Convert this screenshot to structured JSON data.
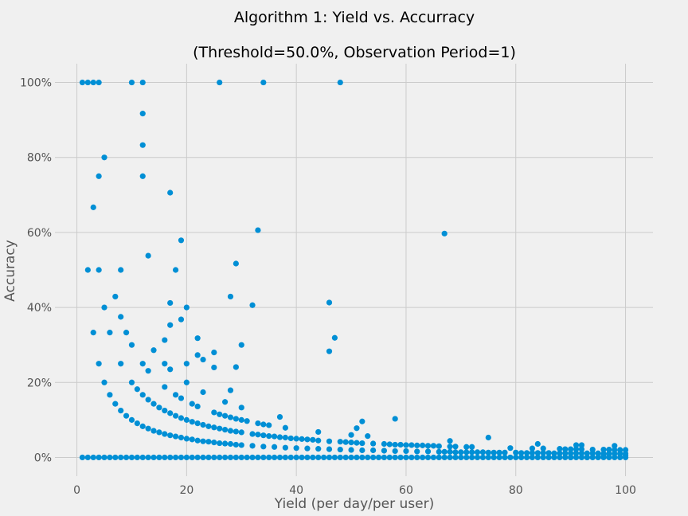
{
  "chart_data": {
    "type": "scatter",
    "title": "Algorithm 1: Yield vs. Accurracy",
    "subtitle": "(Threshold=50.0%, Observation Period=1)",
    "xlabel": "Yield (per day/per user)",
    "ylabel": "Accuracy",
    "xlim": [
      -4,
      105
    ],
    "ylim": [
      -0.05,
      1.05
    ],
    "x_ticks": [
      0,
      20,
      40,
      60,
      80,
      100
    ],
    "x_tick_labels": [
      "0",
      "20",
      "40",
      "60",
      "80",
      "100"
    ],
    "y_ticks": [
      0,
      0.2,
      0.4,
      0.6,
      0.8,
      1.0
    ],
    "y_tick_labels": [
      "0%",
      "20%",
      "40%",
      "60%",
      "80%",
      "100%"
    ],
    "grid": true,
    "point_color": "#008fd5",
    "background": "#f0f0f0",
    "zero_line_x_range": [
      1,
      100
    ],
    "points": [
      [
        1,
        1.0
      ],
      [
        2,
        1.0
      ],
      [
        3,
        1.0
      ],
      [
        4,
        1.0
      ],
      [
        10,
        1.0
      ],
      [
        12,
        1.0
      ],
      [
        26,
        1.0
      ],
      [
        34,
        1.0
      ],
      [
        48,
        1.0
      ],
      [
        12,
        0.917
      ],
      [
        12,
        0.833
      ],
      [
        5,
        0.8
      ],
      [
        4,
        0.75
      ],
      [
        12,
        0.75
      ],
      [
        17,
        0.706
      ],
      [
        3,
        0.667
      ],
      [
        33,
        0.606
      ],
      [
        67,
        0.597
      ],
      [
        19,
        0.579
      ],
      [
        13,
        0.538
      ],
      [
        29,
        0.517
      ],
      [
        2,
        0.5
      ],
      [
        4,
        0.5
      ],
      [
        8,
        0.5
      ],
      [
        18,
        0.5
      ],
      [
        7,
        0.429
      ],
      [
        28,
        0.429
      ],
      [
        17,
        0.412
      ],
      [
        46,
        0.413
      ],
      [
        32,
        0.406
      ],
      [
        5,
        0.4
      ],
      [
        20,
        0.4
      ],
      [
        8,
        0.375
      ],
      [
        19,
        0.368
      ],
      [
        17,
        0.353
      ],
      [
        3,
        0.333
      ],
      [
        6,
        0.333
      ],
      [
        9,
        0.333
      ],
      [
        47,
        0.319
      ],
      [
        22,
        0.318
      ],
      [
        16,
        0.313
      ],
      [
        10,
        0.3
      ],
      [
        30,
        0.3
      ],
      [
        14,
        0.286
      ],
      [
        46,
        0.283
      ],
      [
        25,
        0.28
      ],
      [
        22,
        0.273
      ],
      [
        23,
        0.261
      ],
      [
        4,
        0.25
      ],
      [
        8,
        0.25
      ],
      [
        12,
        0.25
      ],
      [
        16,
        0.25
      ],
      [
        20,
        0.25
      ],
      [
        25,
        0.24
      ],
      [
        29,
        0.241
      ],
      [
        13,
        0.231
      ],
      [
        17,
        0.235
      ],
      [
        5,
        0.2
      ],
      [
        10,
        0.2
      ],
      [
        20,
        0.2
      ],
      [
        11,
        0.182
      ],
      [
        16,
        0.188
      ],
      [
        28,
        0.179
      ],
      [
        23,
        0.174
      ],
      [
        6,
        0.167
      ],
      [
        12,
        0.167
      ],
      [
        18,
        0.167
      ],
      [
        13,
        0.154
      ],
      [
        19,
        0.158
      ],
      [
        27,
        0.148
      ],
      [
        7,
        0.143
      ],
      [
        14,
        0.143
      ],
      [
        21,
        0.143
      ],
      [
        22,
        0.136
      ],
      [
        15,
        0.133
      ],
      [
        30,
        0.133
      ],
      [
        8,
        0.125
      ],
      [
        16,
        0.125
      ],
      [
        17,
        0.118
      ],
      [
        25,
        0.12
      ],
      [
        26,
        0.115
      ],
      [
        9,
        0.111
      ],
      [
        18,
        0.111
      ],
      [
        27,
        0.111
      ],
      [
        37,
        0.108
      ],
      [
        58,
        0.103
      ],
      [
        28,
        0.107
      ],
      [
        29,
        0.103
      ],
      [
        19,
        0.105
      ],
      [
        30,
        0.1
      ],
      [
        10,
        0.1
      ],
      [
        20,
        0.1
      ],
      [
        31,
        0.097
      ],
      [
        52,
        0.096
      ],
      [
        33,
        0.091
      ],
      [
        34,
        0.088
      ],
      [
        21,
        0.095
      ],
      [
        35,
        0.086
      ],
      [
        11,
        0.091
      ],
      [
        22,
        0.091
      ],
      [
        23,
        0.087
      ],
      [
        24,
        0.083
      ],
      [
        12,
        0.083
      ],
      [
        25,
        0.08
      ],
      [
        51,
        0.078
      ],
      [
        38,
        0.079
      ],
      [
        26,
        0.077
      ],
      [
        13,
        0.077
      ],
      [
        27,
        0.074
      ],
      [
        28,
        0.071
      ],
      [
        14,
        0.071
      ],
      [
        29,
        0.069
      ],
      [
        30,
        0.067
      ],
      [
        44,
        0.068
      ],
      [
        15,
        0.067
      ],
      [
        32,
        0.0625
      ],
      [
        16,
        0.0625
      ],
      [
        33,
        0.061
      ],
      [
        34,
        0.059
      ],
      [
        17,
        0.059
      ],
      [
        35,
        0.057
      ],
      [
        50,
        0.06
      ],
      [
        53,
        0.057
      ],
      [
        36,
        0.056
      ],
      [
        18,
        0.056
      ],
      [
        37,
        0.054
      ],
      [
        75,
        0.053
      ],
      [
        19,
        0.053
      ],
      [
        38,
        0.053
      ],
      [
        39,
        0.051
      ],
      [
        20,
        0.05
      ],
      [
        40,
        0.05
      ],
      [
        41,
        0.049
      ],
      [
        21,
        0.048
      ],
      [
        42,
        0.048
      ],
      [
        22,
        0.045
      ],
      [
        43,
        0.047
      ],
      [
        44,
        0.045
      ],
      [
        23,
        0.043
      ],
      [
        46,
        0.043
      ],
      [
        68,
        0.044
      ],
      [
        48,
        0.042
      ],
      [
        24,
        0.042
      ],
      [
        49,
        0.041
      ],
      [
        50,
        0.04
      ],
      [
        25,
        0.04
      ],
      [
        51,
        0.039
      ],
      [
        52,
        0.038
      ],
      [
        26,
        0.038
      ],
      [
        54,
        0.037
      ],
      [
        56,
        0.036
      ],
      [
        57,
        0.035
      ],
      [
        27,
        0.037
      ],
      [
        58,
        0.034
      ],
      [
        59,
        0.034
      ],
      [
        28,
        0.036
      ],
      [
        60,
        0.033
      ],
      [
        61,
        0.033
      ],
      [
        62,
        0.032
      ],
      [
        29,
        0.034
      ],
      [
        63,
        0.032
      ],
      [
        64,
        0.031
      ],
      [
        65,
        0.031
      ],
      [
        30,
        0.033
      ],
      [
        66,
        0.03
      ],
      [
        68,
        0.029
      ],
      [
        69,
        0.029
      ],
      [
        71,
        0.028
      ],
      [
        72,
        0.028
      ],
      [
        84,
        0.036
      ],
      [
        83,
        0.024
      ],
      [
        79,
        0.025
      ],
      [
        85,
        0.024
      ],
      [
        88,
        0.023
      ],
      [
        89,
        0.022
      ],
      [
        90,
        0.022
      ],
      [
        91,
        0.022
      ],
      [
        92,
        0.022
      ],
      [
        91,
        0.033
      ],
      [
        92,
        0.033
      ],
      [
        98,
        0.031
      ],
      [
        94,
        0.021
      ],
      [
        96,
        0.021
      ],
      [
        97,
        0.021
      ],
      [
        98,
        0.02
      ],
      [
        99,
        0.02
      ],
      [
        100,
        0.02
      ],
      [
        32,
        0.031
      ],
      [
        34,
        0.029
      ],
      [
        36,
        0.028
      ],
      [
        38,
        0.026
      ],
      [
        40,
        0.025
      ],
      [
        42,
        0.024
      ],
      [
        44,
        0.023
      ],
      [
        46,
        0.022
      ],
      [
        48,
        0.021
      ],
      [
        50,
        0.02
      ],
      [
        52,
        0.019
      ],
      [
        54,
        0.019
      ],
      [
        56,
        0.018
      ],
      [
        58,
        0.017
      ],
      [
        60,
        0.017
      ],
      [
        62,
        0.016
      ],
      [
        64,
        0.016
      ],
      [
        66,
        0.015
      ],
      [
        68,
        0.015
      ],
      [
        70,
        0.014
      ],
      [
        72,
        0.014
      ],
      [
        74,
        0.014
      ],
      [
        76,
        0.013
      ],
      [
        78,
        0.013
      ],
      [
        80,
        0.013
      ],
      [
        82,
        0.012
      ],
      [
        84,
        0.012
      ],
      [
        86,
        0.012
      ],
      [
        88,
        0.011
      ],
      [
        90,
        0.011
      ],
      [
        92,
        0.011
      ],
      [
        94,
        0.011
      ],
      [
        96,
        0.01
      ],
      [
        98,
        0.01
      ],
      [
        100,
        0.01
      ],
      [
        67,
        0.015
      ],
      [
        69,
        0.014
      ],
      [
        71,
        0.014
      ],
      [
        73,
        0.014
      ],
      [
        75,
        0.013
      ],
      [
        77,
        0.013
      ],
      [
        81,
        0.012
      ],
      [
        83,
        0.012
      ],
      [
        85,
        0.012
      ],
      [
        87,
        0.011
      ],
      [
        89,
        0.011
      ],
      [
        91,
        0.011
      ],
      [
        93,
        0.011
      ],
      [
        95,
        0.011
      ],
      [
        97,
        0.01
      ],
      [
        99,
        0.01
      ],
      [
        90,
        0.0
      ],
      [
        93,
        0.0
      ],
      [
        96,
        0.005
      ],
      [
        100,
        0.005
      ]
    ]
  }
}
